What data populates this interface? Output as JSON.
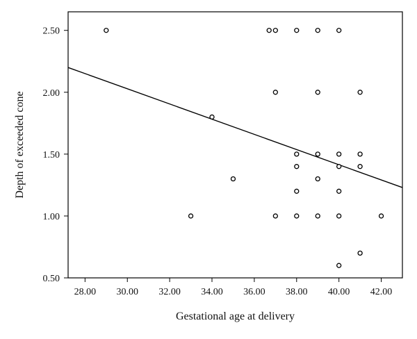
{
  "chart_data": {
    "type": "scatter",
    "title": "",
    "xlabel": "Gestational age at delivery",
    "ylabel": "Depth of exceeded cone",
    "xlim": [
      27.2,
      43.0
    ],
    "ylim": [
      0.5,
      2.65
    ],
    "x_ticks": [
      28,
      30,
      32,
      34,
      36,
      38,
      40,
      42
    ],
    "x_tick_labels": [
      "28.00",
      "30.00",
      "32.00",
      "34.00",
      "36.00",
      "38.00",
      "40.00",
      "42.00"
    ],
    "y_ticks": [
      0.5,
      1.0,
      1.5,
      2.0,
      2.5
    ],
    "y_tick_labels": [
      "0.50",
      "1.00",
      "1.50",
      "2.00",
      "2.50"
    ],
    "grid": false,
    "legend": "none",
    "points": [
      {
        "x": 29,
        "y": 2.5
      },
      {
        "x": 36.7,
        "y": 2.5
      },
      {
        "x": 37,
        "y": 2.5
      },
      {
        "x": 38,
        "y": 2.5
      },
      {
        "x": 39,
        "y": 2.5
      },
      {
        "x": 40,
        "y": 2.5
      },
      {
        "x": 37,
        "y": 2.0
      },
      {
        "x": 39,
        "y": 2.0
      },
      {
        "x": 41,
        "y": 2.0
      },
      {
        "x": 34,
        "y": 1.8
      },
      {
        "x": 38,
        "y": 1.5
      },
      {
        "x": 39,
        "y": 1.5
      },
      {
        "x": 40,
        "y": 1.5
      },
      {
        "x": 41,
        "y": 1.5
      },
      {
        "x": 38,
        "y": 1.4
      },
      {
        "x": 40,
        "y": 1.4
      },
      {
        "x": 41,
        "y": 1.4
      },
      {
        "x": 35,
        "y": 1.3
      },
      {
        "x": 39,
        "y": 1.3
      },
      {
        "x": 38,
        "y": 1.2
      },
      {
        "x": 40,
        "y": 1.2
      },
      {
        "x": 33,
        "y": 1.0
      },
      {
        "x": 37,
        "y": 1.0
      },
      {
        "x": 38,
        "y": 1.0
      },
      {
        "x": 39,
        "y": 1.0
      },
      {
        "x": 40,
        "y": 1.0
      },
      {
        "x": 42,
        "y": 1.0
      },
      {
        "x": 41,
        "y": 0.7
      },
      {
        "x": 40,
        "y": 0.6
      }
    ],
    "fit_line": {
      "x": [
        27.2,
        43.0
      ],
      "y": [
        2.2,
        1.23
      ]
    },
    "colors": {
      "marker": "#000000",
      "line": "#000000",
      "frame": "#000000"
    }
  }
}
